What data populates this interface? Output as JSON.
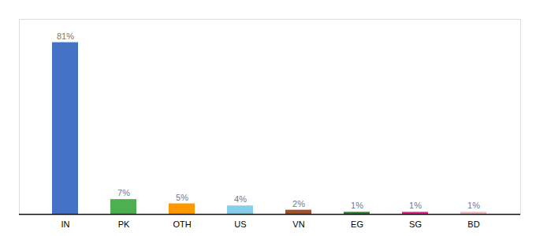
{
  "chart_data": {
    "type": "bar",
    "categories": [
      "IN",
      "PK",
      "OTH",
      "US",
      "VN",
      "EG",
      "SG",
      "BD"
    ],
    "values": [
      81,
      7,
      5,
      4,
      2,
      1,
      1,
      1
    ],
    "value_labels": [
      "81%",
      "7%",
      "5%",
      "4%",
      "2%",
      "1%",
      "1%",
      "1%"
    ],
    "colors": [
      "#4472c4",
      "#4caf50",
      "#ff9800",
      "#87ceeb",
      "#a0522d",
      "#2e7d32",
      "#e91e8c",
      "#f4b8c0"
    ],
    "ylim": [
      0,
      92
    ],
    "grid": false,
    "data_labels": true,
    "tick_labels": "x"
  }
}
